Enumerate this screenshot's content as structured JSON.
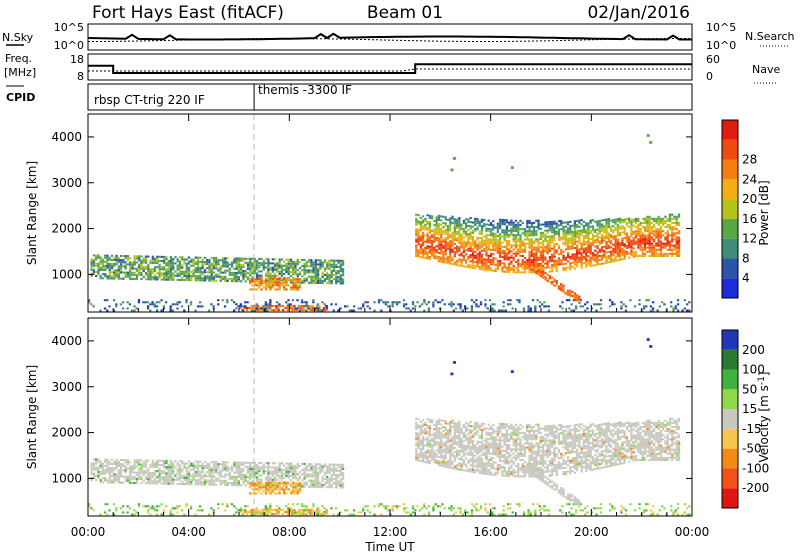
{
  "header": {
    "site": "Fort Hays East (fitACF)",
    "beam": "Beam 01",
    "date": "02/Jan/2016"
  },
  "nsky_panel": {
    "left_label": "N.Sky",
    "right_label": "N.Search",
    "left_ticks": [
      "10^5",
      "10^0"
    ],
    "right_ticks": [
      "10^5",
      "10^0"
    ]
  },
  "freq_panel": {
    "left_label_1": "Freq.",
    "left_label_2": "[MHz]",
    "right_label": "Nave",
    "left_ticks": [
      "18",
      "8"
    ],
    "right_ticks": [
      "60",
      "0"
    ],
    "freq_steps": [
      {
        "t": 0,
        "v": 14.5
      },
      {
        "t": 1.0,
        "v": 11.2
      },
      {
        "t": 13.0,
        "v": 15.2
      },
      {
        "t": 24,
        "v": 15.2
      }
    ]
  },
  "cpid_panel": {
    "label": "CPID",
    "segments": [
      {
        "start_hour": 0,
        "text": "rbsp CT-trig 220 IF"
      },
      {
        "start_hour": 6.6,
        "text": "themis -3300 IF"
      }
    ]
  },
  "chart_data": [
    {
      "type": "heatmap",
      "title": "",
      "ylabel": "Slant Range [km]",
      "xlabel": "Time UT",
      "xlim": [
        0,
        24
      ],
      "ylim": [
        180,
        4500
      ],
      "x_ticks": [
        "00:00",
        "04:00",
        "08:00",
        "12:00",
        "16:00",
        "20:00",
        "00:00"
      ],
      "y_ticks": [
        1000,
        2000,
        3000,
        4000
      ],
      "colorbar": {
        "label": "Power [dB]",
        "ticks": [
          4,
          8,
          12,
          16,
          20,
          24,
          28
        ],
        "range": [
          0,
          30
        ],
        "colors": [
          "#1c2cd6",
          "#2a55a8",
          "#3f8c78",
          "#58a845",
          "#b6c21c",
          "#f4ad12",
          "#f57d12",
          "#ef4a10",
          "#e11b0f"
        ]
      },
      "echo_regions": [
        {
          "t_start": 0.1,
          "t_end": 10.1,
          "range_low": 850,
          "range_high": 1400,
          "peak_db": 14
        },
        {
          "t_start": 6.0,
          "t_end": 9.5,
          "range_low": 200,
          "range_high": 320,
          "peak_db": 28
        },
        {
          "t_start": 13.0,
          "t_end": 23.5,
          "range_low": 700,
          "range_high": 2400,
          "peak_db": 26
        },
        {
          "t_start": 0.0,
          "t_end": 24.0,
          "range_low": 180,
          "range_high": 400,
          "peak_db": 10
        }
      ]
    },
    {
      "type": "heatmap",
      "title": "",
      "ylabel": "Slant Range [km]",
      "xlabel": "Time UT",
      "xlim": [
        0,
        24
      ],
      "ylim": [
        180,
        4500
      ],
      "x_ticks": [
        "00:00",
        "04:00",
        "08:00",
        "12:00",
        "16:00",
        "20:00",
        "00:00"
      ],
      "y_ticks": [
        1000,
        2000,
        3000,
        4000
      ],
      "colorbar": {
        "label": "Velocity [m s^-1]",
        "ticks": [
          200,
          100,
          50,
          15,
          -15,
          -50,
          -100,
          -200
        ],
        "colors": [
          "#2136b8",
          "#2a7b2f",
          "#3fb33b",
          "#8fd84a",
          "#c8c8c0",
          "#f6c74a",
          "#f48a14",
          "#f0521a",
          "#e01414"
        ]
      },
      "dominant_velocity": "-15 to 15 (ground scatter grey)"
    }
  ]
}
